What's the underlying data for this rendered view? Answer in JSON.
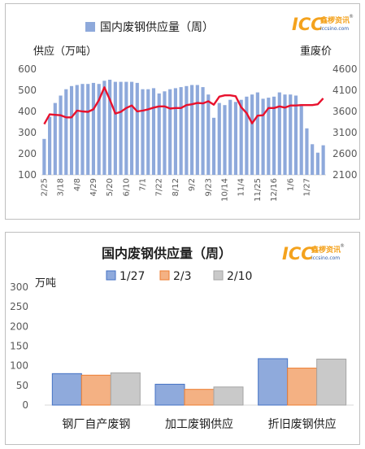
{
  "logo": {
    "brand": "ICC",
    "cn": "鑫椤资讯",
    "url": "iccsino.com",
    "reg": "®"
  },
  "colors": {
    "bar1": "#8ea9db",
    "line1": "#e8112d",
    "s1": "#4472c4",
    "s2": "#ed7d31",
    "s3": "#a5a5a5",
    "f1": "#8faadc",
    "f2": "#f4b183",
    "f3": "#c9c9c9",
    "text": "#1f1f1f",
    "axis": "#595959"
  },
  "chart_data": [
    {
      "type": "bar+line",
      "title": "国内废钢供应量（周）",
      "y_left_label": "供应（万吨）",
      "y_right_label": "重废价",
      "ylim_left": [
        100,
        600
      ],
      "ylim_right": [
        2100,
        4600
      ],
      "yticks_left": [
        "100",
        "200",
        "300",
        "400",
        "500",
        "600"
      ],
      "yticks_right": [
        "2100",
        "2600",
        "3100",
        "3600",
        "4100",
        "4600"
      ],
      "x_tick_labels": [
        "2/25",
        "3/18",
        "4/8",
        "4/29",
        "5/20",
        "6/10",
        "7/1",
        "7/22",
        "8/12",
        "9/2",
        "9/23",
        "10/14",
        "11/4",
        "11/25",
        "12/16",
        "1/6",
        "1/27"
      ],
      "x_tick_indices": [
        0,
        3,
        6,
        9,
        12,
        15,
        18,
        21,
        24,
        27,
        30,
        33,
        36,
        39,
        42,
        45,
        48
      ],
      "series": [
        {
          "name": "国内废钢供应量（周）",
          "axis": "left",
          "kind": "bar",
          "values": [
            270,
            375,
            440,
            475,
            505,
            520,
            525,
            530,
            530,
            535,
            530,
            545,
            550,
            540,
            540,
            540,
            540,
            535,
            505,
            505,
            510,
            485,
            495,
            505,
            510,
            515,
            520,
            525,
            525,
            515,
            480,
            370,
            440,
            430,
            455,
            445,
            455,
            470,
            480,
            490,
            460,
            465,
            470,
            490,
            480,
            480,
            475,
            435,
            320,
            245,
            205,
            240
          ]
        },
        {
          "axis": "right",
          "kind": "line",
          "values": [
            3300,
            3530,
            3520,
            3510,
            3460,
            3460,
            3620,
            3600,
            3590,
            3650,
            3870,
            4170,
            3880,
            3550,
            3590,
            3680,
            3740,
            3600,
            3620,
            3650,
            3690,
            3720,
            3720,
            3670,
            3680,
            3680,
            3750,
            3770,
            3800,
            3790,
            3840,
            3760,
            3950,
            3980,
            3980,
            3960,
            3700,
            3560,
            3320,
            3500,
            3510,
            3680,
            3680,
            3720,
            3690,
            3740,
            3740,
            3750,
            3750,
            3750,
            3770,
            3910
          ]
        }
      ]
    },
    {
      "type": "bar",
      "title": "国内废钢供应量（周）",
      "ylabel": "万吨",
      "ylim": [
        0,
        300
      ],
      "yticks": [
        "0",
        "50",
        "100",
        "150",
        "200",
        "250",
        "300"
      ],
      "categories": [
        "钢厂自产废钢",
        "加工废钢供应",
        "折旧废钢供应"
      ],
      "series": [
        {
          "name": "1/27",
          "values": [
            80,
            53,
            118
          ]
        },
        {
          "name": "2/3",
          "values": [
            76,
            40,
            94
          ]
        },
        {
          "name": "2/10",
          "values": [
            82,
            46,
            117
          ]
        }
      ],
      "legend": "top"
    }
  ]
}
